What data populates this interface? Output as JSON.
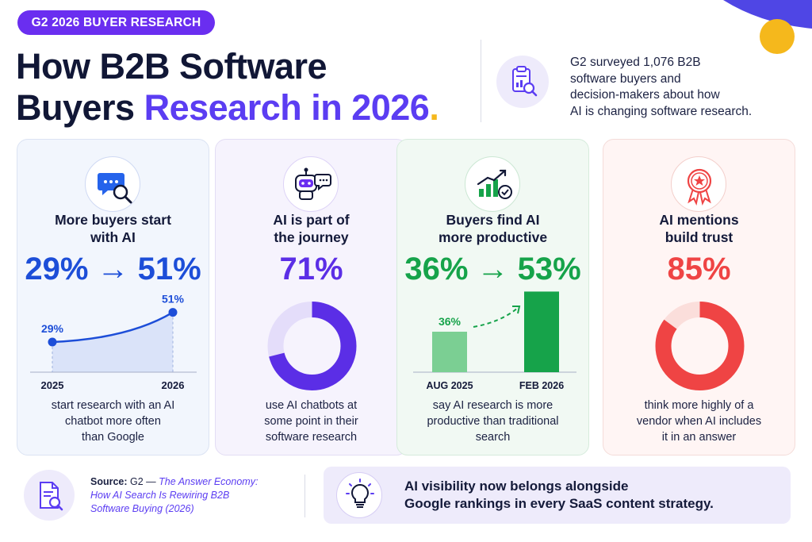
{
  "colors": {
    "purple": "#5b3df2",
    "blue": "#1d4ed8",
    "green": "#16a34a",
    "red": "#ef4444",
    "badge": "#6a2ef0",
    "gold": "#f5b81c"
  },
  "header": {
    "badge": "G2 2026 BUYER RESEARCH",
    "title_line1": "How B2B Software",
    "title_line2_start": "Buyers ",
    "title_line2_accent": "Research in 2026",
    "title_dot": ".",
    "intro_icon": "clipboard-chart-magnifier-icon",
    "intro_lines": [
      "G2 surveyed 1,076 B2B",
      "software buyers and",
      "decision-makers about how",
      "AI is changing software research."
    ]
  },
  "cards": [
    {
      "icon": "chat-bubble-magnifier-icon",
      "heading_lines": [
        "More buyers start",
        "with AI"
      ],
      "stat": "29% → 51%",
      "description_lines": [
        "start research with an AI",
        "chatbot more often",
        "than Google"
      ]
    },
    {
      "icon": "robot-chat-icon",
      "heading_lines": [
        "AI is part of",
        "the journey"
      ],
      "stat": "71%",
      "description_lines": [
        "use AI chatbots at",
        "some point in their",
        "software research"
      ]
    },
    {
      "icon": "growth-bar-chart-check-icon",
      "heading_lines": [
        "Buyers find AI",
        "more productive"
      ],
      "stat": "36% → 53%",
      "description_lines": [
        "say AI research is more",
        "productive than traditional",
        "search"
      ]
    },
    {
      "icon": "award-ribbon-star-icon",
      "heading_lines": [
        "AI mentions",
        "build trust"
      ],
      "stat": "85%",
      "description_lines": [
        "think more highly of a",
        "vendor when AI includes",
        "it in an answer"
      ]
    }
  ],
  "chart_data": [
    {
      "type": "line",
      "title": "More buyers start with AI",
      "x": [
        "2025",
        "2026"
      ],
      "series": [
        {
          "values": [
            29,
            51
          ]
        }
      ],
      "data_labels": [
        "29%",
        "51%"
      ]
    },
    {
      "type": "pie",
      "title": "AI is part of the journey",
      "values": [
        71,
        29
      ],
      "data_label": "71%"
    },
    {
      "type": "bar",
      "title": "Buyers find AI more productive",
      "categories": [
        "AUG 2025",
        "FEB 2026"
      ],
      "values": [
        36,
        53
      ],
      "data_labels": [
        "36%",
        "53%"
      ]
    },
    {
      "type": "pie",
      "title": "AI mentions build trust",
      "values": [
        85,
        15
      ],
      "data_label": "85%"
    }
  ],
  "footer": {
    "source_icon": "document-magnifier-icon",
    "source_label": "Source:",
    "source_org": " G2 — ",
    "source_title_lines": [
      "The Answer Economy:",
      "How AI Search Is Rewiring B2B",
      "Software Buying (2026)"
    ],
    "callout_icon": "lightbulb-icon",
    "callout_lines": [
      "AI visibility now belongs alongside",
      "Google rankings in every SaaS content strategy."
    ]
  }
}
